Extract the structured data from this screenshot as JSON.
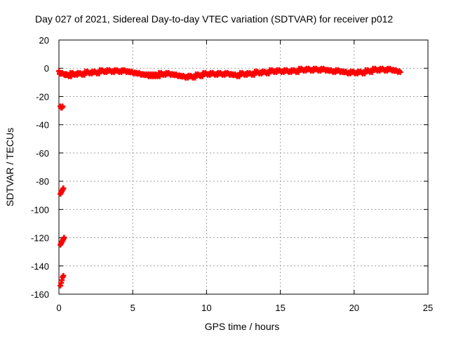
{
  "chart_data": {
    "type": "scatter",
    "title": "Day 027 of 2021, Sidereal Day-to-day VTEC variation (SDTVAR) for receiver p012",
    "xlabel": "GPS time / hours",
    "ylabel": "SDTVAR / TECUs",
    "xlim": [
      0,
      25
    ],
    "ylim": [
      -160,
      20
    ],
    "xticks": [
      0,
      5,
      10,
      15,
      20,
      25
    ],
    "yticks": [
      20,
      0,
      -20,
      -40,
      -60,
      -80,
      -100,
      -120,
      -140,
      -160
    ],
    "grid": true,
    "marker": "plus",
    "colors": {
      "series": "#ff0000",
      "axis": "#000000",
      "grid": "#a0a0a0"
    },
    "series": [
      {
        "name": "main-track",
        "x": [
          0.3,
          0.6,
          1.0,
          1.5,
          2.0,
          2.5,
          3.0,
          3.5,
          4.0,
          4.5,
          5.0,
          5.5,
          6.0,
          6.3,
          6.6,
          7.0,
          7.5,
          8.0,
          8.5,
          9.0,
          9.5,
          10.0,
          10.5,
          11.0,
          11.5,
          12.0,
          12.5,
          13.0,
          13.5,
          14.0,
          14.5,
          15.0,
          15.5,
          16.0,
          16.5,
          17.0,
          17.5,
          18.0,
          18.5,
          19.0,
          19.5,
          20.0,
          20.5,
          21.0,
          21.5,
          22.0,
          22.5,
          22.9
        ],
        "y": [
          -4,
          -5,
          -4,
          -4,
          -3,
          -3,
          -2,
          -2,
          -2,
          -2,
          -3,
          -4,
          -5,
          -5,
          -5,
          -4,
          -4,
          -5,
          -6,
          -6,
          -5,
          -4,
          -4,
          -4,
          -4,
          -5,
          -4,
          -4,
          -3,
          -3,
          -2,
          -2,
          -2,
          -2,
          -1,
          -1,
          -1,
          -1,
          -2,
          -2,
          -3,
          -3,
          -3,
          -2,
          -1,
          -1,
          -1,
          -2
        ]
      },
      {
        "name": "early-points",
        "x": [
          0.0,
          0.05,
          0.1,
          0.15,
          0.2,
          0.25,
          0.1,
          0.15,
          0.2,
          0.25,
          0.3,
          0.1,
          0.15,
          0.2,
          0.25,
          0.3,
          0.35,
          0.1,
          0.15,
          0.2,
          0.25,
          0.3
        ],
        "y": [
          -2,
          -4,
          -27,
          -28,
          -28,
          -27,
          -89,
          -88,
          -87,
          -86,
          -85,
          -125,
          -124,
          -123,
          -122,
          -121,
          -120,
          -154,
          -152,
          -150,
          -148,
          -147
        ]
      }
    ]
  }
}
